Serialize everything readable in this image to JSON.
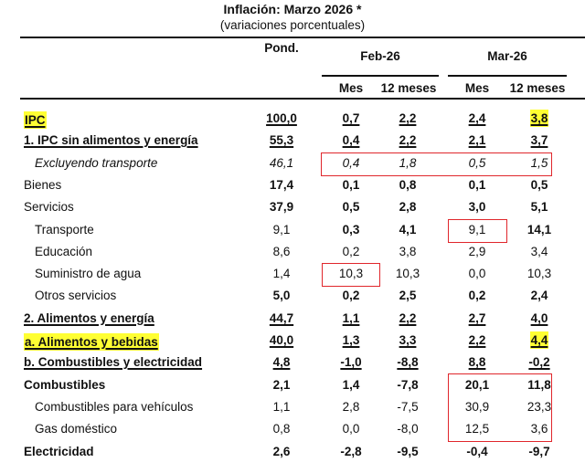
{
  "title": "Inflación: Marzo 2026 *",
  "subtitle": "(variaciones porcentuales)",
  "headers": {
    "pond": "Pond.",
    "groups": [
      "Feb-26",
      "Mar-26"
    ],
    "sub": [
      "Mes",
      "12 meses",
      "Mes",
      "12 meses"
    ]
  },
  "highlight_color": "#ffff33",
  "box_color": "#e0262b",
  "rows": [
    {
      "label": "IPC",
      "indent": false,
      "label_style": "bu",
      "label_highlight": true,
      "values": [
        "100,0",
        "0,7",
        "2,2",
        "2,4",
        "3,8"
      ],
      "bold": [
        1,
        1,
        1,
        1,
        1
      ],
      "underline": true,
      "highlight_cells": [
        4
      ]
    },
    {
      "label": "1. IPC sin alimentos y energía",
      "indent": false,
      "label_style": "bu",
      "values": [
        "55,3",
        "0,4",
        "2,2",
        "2,1",
        "3,7"
      ],
      "bold": [
        1,
        1,
        1,
        1,
        1
      ],
      "underline": true
    },
    {
      "label": "Excluyendo transporte",
      "indent": true,
      "label_style": "i",
      "values": [
        "46,1",
        "0,4",
        "1,8",
        "0,5",
        "1,5"
      ],
      "bold": [
        0,
        0,
        0,
        0,
        0
      ],
      "italic": true
    },
    {
      "label": "Bienes",
      "indent": false,
      "label_style": "",
      "values": [
        "17,4",
        "0,1",
        "0,8",
        "0,1",
        "0,5"
      ],
      "bold": [
        1,
        1,
        1,
        1,
        1
      ]
    },
    {
      "label": "Servicios",
      "indent": false,
      "label_style": "",
      "values": [
        "37,9",
        "0,5",
        "2,8",
        "3,0",
        "5,1"
      ],
      "bold": [
        1,
        1,
        1,
        1,
        1
      ]
    },
    {
      "label": "Transporte",
      "indent": true,
      "label_style": "",
      "values": [
        "9,1",
        "0,3",
        "4,1",
        "9,1",
        "14,1"
      ],
      "bold": [
        0,
        1,
        1,
        0,
        1
      ]
    },
    {
      "label": "Educación",
      "indent": true,
      "label_style": "",
      "values": [
        "8,6",
        "0,2",
        "3,8",
        "2,9",
        "3,4"
      ],
      "bold": [
        0,
        0,
        0,
        0,
        0
      ]
    },
    {
      "label": "Suministro de agua",
      "indent": true,
      "label_style": "",
      "values": [
        "1,4",
        "10,3",
        "10,3",
        "0,0",
        "10,3"
      ],
      "bold": [
        0,
        0,
        0,
        0,
        0
      ]
    },
    {
      "label": "Otros servicios",
      "indent": true,
      "label_style": "",
      "values": [
        "5,0",
        "0,2",
        "2,5",
        "0,2",
        "2,4"
      ],
      "bold": [
        1,
        1,
        1,
        1,
        1
      ]
    },
    {
      "label": "2. Alimentos y energía",
      "indent": false,
      "label_style": "bu",
      "values": [
        "44,7",
        "1,1",
        "2,2",
        "2,7",
        "4,0"
      ],
      "bold": [
        1,
        1,
        1,
        1,
        1
      ],
      "underline": true
    },
    {
      "label": "a. Alimentos y bebidas",
      "indent": false,
      "label_style": "bu",
      "label_highlight": true,
      "values": [
        "40,0",
        "1,3",
        "3,3",
        "2,2",
        "4,4"
      ],
      "bold": [
        1,
        1,
        1,
        1,
        1
      ],
      "underline": true,
      "highlight_cells": [
        4
      ]
    },
    {
      "label": "b. Combustibles y electricidad",
      "indent": false,
      "label_style": "bu",
      "values": [
        "4,8",
        "-1,0",
        "-8,8",
        "8,8",
        "-0,2"
      ],
      "bold": [
        1,
        1,
        1,
        1,
        1
      ],
      "underline": true
    },
    {
      "label": "Combustibles",
      "indent": false,
      "label_style": "b",
      "values": [
        "2,1",
        "1,4",
        "-7,8",
        "20,1",
        "11,8"
      ],
      "bold": [
        1,
        1,
        1,
        1,
        1
      ]
    },
    {
      "label": "Combustibles para vehículos",
      "indent": true,
      "label_style": "",
      "values": [
        "1,1",
        "2,8",
        "-7,5",
        "30,9",
        "23,3"
      ],
      "bold": [
        0,
        0,
        0,
        0,
        0
      ]
    },
    {
      "label": "Gas doméstico",
      "indent": true,
      "label_style": "",
      "values": [
        "0,8",
        "0,0",
        "-8,0",
        "12,5",
        "3,6"
      ],
      "bold": [
        0,
        0,
        0,
        0,
        0
      ]
    },
    {
      "label": "Electricidad",
      "indent": false,
      "label_style": "b",
      "values": [
        "2,6",
        "-2,8",
        "-9,5",
        "-0,4",
        "-9,7"
      ],
      "bold": [
        1,
        1,
        1,
        1,
        1
      ]
    }
  ]
}
